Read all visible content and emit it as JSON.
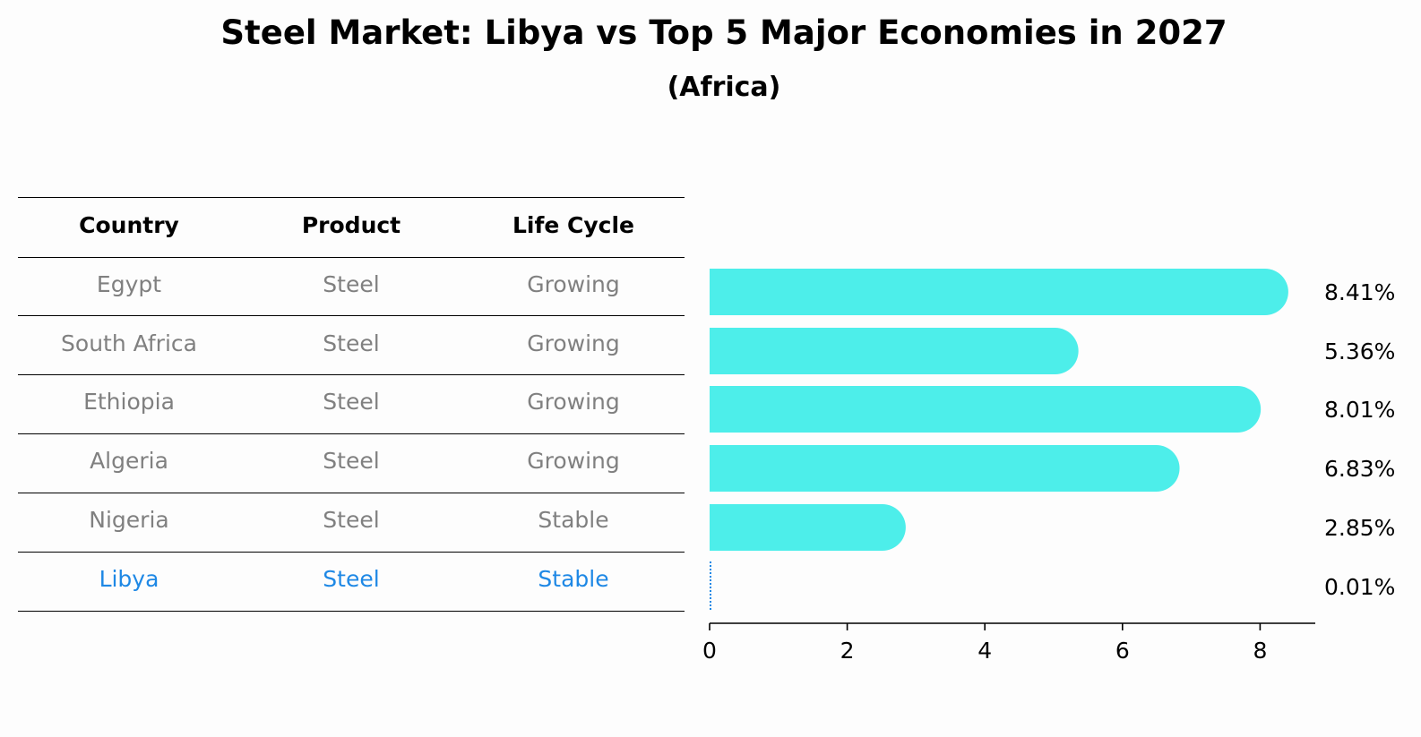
{
  "title": "Steel Market: Libya vs Top 5 Major Economies in 2027",
  "subtitle": "(Africa)",
  "table": {
    "headers": [
      "Country",
      "Product",
      "Life Cycle"
    ],
    "rows": [
      [
        "Egypt",
        "Steel",
        "Growing"
      ],
      [
        "South Africa",
        "Steel",
        "Growing"
      ],
      [
        "Ethiopia",
        "Steel",
        "Growing"
      ],
      [
        "Algeria",
        "Steel",
        "Growing"
      ],
      [
        "Nigeria",
        "Steel",
        "Stable"
      ],
      [
        "Libya",
        "Steel",
        "Stable"
      ]
    ],
    "highlight_row": "Libya"
  },
  "colors": {
    "bar": "#4deeea",
    "highlight": "#1e88e5",
    "muted_text": "#808080"
  },
  "chart_data": {
    "type": "bar",
    "orientation": "horizontal",
    "categories": [
      "Egypt",
      "South Africa",
      "Ethiopia",
      "Algeria",
      "Nigeria",
      "Libya"
    ],
    "values": [
      8.41,
      5.36,
      8.01,
      6.83,
      2.85,
      0.01
    ],
    "value_labels": [
      "8.41%",
      "5.36%",
      "8.01%",
      "6.83%",
      "2.85%",
      "0.01%"
    ],
    "xlim": [
      0,
      8.8
    ],
    "xticks": [
      0,
      2,
      4,
      6,
      8
    ],
    "grid": false,
    "title": "Steel Market: Libya vs Top 5 Major Economies in 2027",
    "xlabel": "",
    "ylabel": ""
  }
}
